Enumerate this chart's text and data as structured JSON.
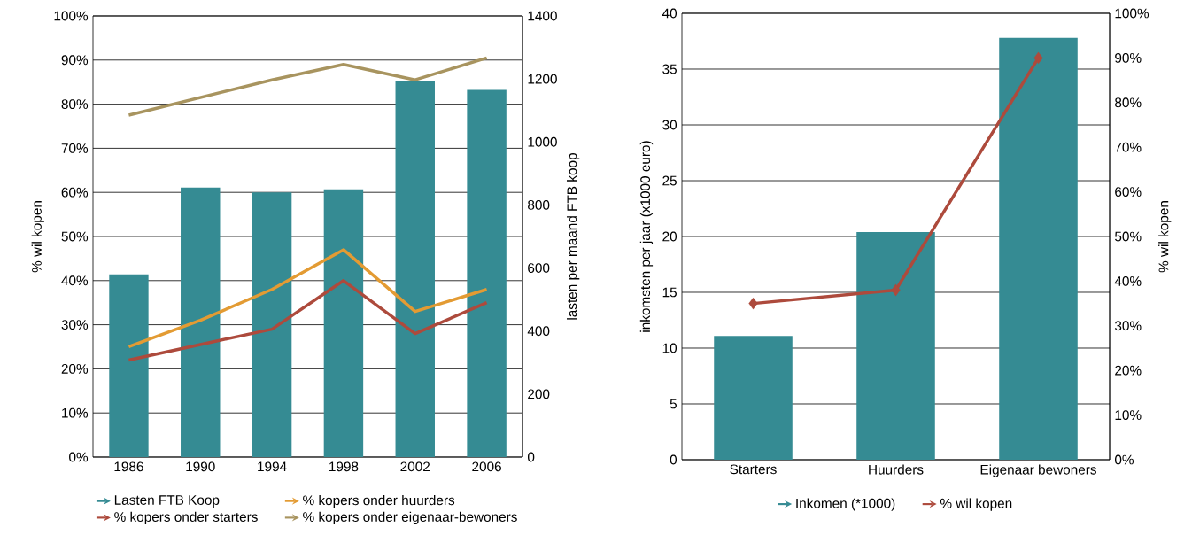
{
  "chart_data": [
    {
      "type": "bar",
      "categories": [
        "1986",
        "1990",
        "1994",
        "1998",
        "2002",
        "2006"
      ],
      "ylabel": "% wil kopen",
      "y2label": "lasten per maand FTB koop",
      "ylim": [
        0,
        100
      ],
      "yticks": [
        {
          "value": 0,
          "label": "0%"
        },
        {
          "value": 10,
          "label": "10%"
        },
        {
          "value": 20,
          "label": "20%"
        },
        {
          "value": 30,
          "label": "30%"
        },
        {
          "value": 40,
          "label": "40%"
        },
        {
          "value": 50,
          "label": "50%"
        },
        {
          "value": 60,
          "label": "60%"
        },
        {
          "value": 70,
          "label": "70%"
        },
        {
          "value": 80,
          "label": "80%"
        },
        {
          "value": 90,
          "label": "90%"
        },
        {
          "value": 100,
          "label": "100%"
        }
      ],
      "y2lim": [
        0,
        1400
      ],
      "y2ticks": [
        0,
        200,
        400,
        600,
        800,
        1000,
        1200,
        1400
      ],
      "grid": "y",
      "legend": "bottom",
      "series": [
        {
          "name": "Lasten FTB Koop",
          "axis": "y2",
          "color": "#358b93",
          "values": [
            580,
            855,
            840,
            850,
            1195,
            1165
          ]
        },
        {
          "name": "% kopers onder huurders",
          "type": "line",
          "color": "#e39b33",
          "values": [
            25,
            31,
            38,
            47,
            33,
            38
          ]
        },
        {
          "name": "% kopers onder starters",
          "type": "line",
          "color": "#ad4a3c",
          "values": [
            22,
            25.5,
            29,
            40,
            28,
            35
          ]
        },
        {
          "name": "% kopers onder eigenaar-bewoners",
          "type": "line",
          "color": "#a8945f",
          "values": [
            77.5,
            81.5,
            85.5,
            89,
            85.5,
            90.5
          ]
        }
      ]
    },
    {
      "type": "bar",
      "categories": [
        "Starters",
        "Huurders",
        "Eigenaar bewoners"
      ],
      "ylabel": "inkomsten per jaar (x1000 euro)",
      "y2label": "% wil kopen",
      "ylim": [
        0,
        40
      ],
      "yticks": [
        0,
        5,
        10,
        15,
        20,
        25,
        30,
        35,
        40
      ],
      "y2lim": [
        0,
        100
      ],
      "y2ticks": [
        {
          "value": 0,
          "label": "0%"
        },
        {
          "value": 10,
          "label": "10%"
        },
        {
          "value": 20,
          "label": "20%"
        },
        {
          "value": 30,
          "label": "30%"
        },
        {
          "value": 40,
          "label": "40%"
        },
        {
          "value": 50,
          "label": "50%"
        },
        {
          "value": 60,
          "label": "60%"
        },
        {
          "value": 70,
          "label": "70%"
        },
        {
          "value": 80,
          "label": "80%"
        },
        {
          "value": 90,
          "label": "90%"
        },
        {
          "value": 100,
          "label": "100%"
        }
      ],
      "grid": "y",
      "legend": "bottom",
      "marker": "diamond",
      "series": [
        {
          "name": "Inkomen (*1000)",
          "color": "#358b93",
          "values": [
            11.1,
            20.4,
            37.8
          ]
        },
        {
          "name": "% wil kopen",
          "type": "line",
          "axis": "y2",
          "color": "#ad4a3c",
          "values": [
            35,
            38,
            90
          ]
        }
      ]
    }
  ]
}
